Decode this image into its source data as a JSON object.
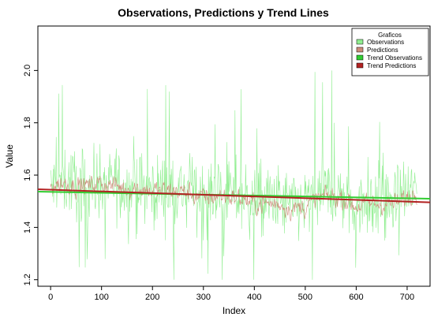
{
  "chart_data": {
    "type": "line",
    "title": "Observations, Predictions y Trend Lines",
    "xlabel": "Index",
    "ylabel": "Value",
    "xlim": [
      -25,
      745
    ],
    "ylim": [
      1.175,
      2.17
    ],
    "x_ticks": [
      0,
      100,
      200,
      300,
      400,
      500,
      600,
      700
    ],
    "y_ticks": [
      1.2,
      1.4,
      1.6,
      1.8,
      2.0
    ],
    "y_tick_labels": [
      "1.2",
      "1.4",
      "1.6",
      "1.8",
      "2.0"
    ],
    "x_tick_labels": [
      "0",
      "100",
      "200",
      "300",
      "400",
      "500",
      "600",
      "700"
    ],
    "n_points": 720,
    "grid": false,
    "legend": {
      "title": "Graficos",
      "position": "top-right",
      "entries": [
        "Observations",
        "Predictions",
        "Trend Observations",
        "Trend Predictions"
      ]
    },
    "series": [
      {
        "name": "Observations",
        "color": "#90ee90",
        "anchors": [
          [
            0,
            1.55
          ],
          [
            25,
            1.58
          ],
          [
            50,
            1.57
          ],
          [
            75,
            1.56
          ],
          [
            100,
            1.56
          ],
          [
            125,
            1.57
          ],
          [
            150,
            1.55
          ],
          [
            175,
            1.55
          ],
          [
            200,
            1.54
          ],
          [
            225,
            1.55
          ],
          [
            250,
            1.55
          ],
          [
            275,
            1.54
          ],
          [
            300,
            1.52
          ],
          [
            325,
            1.53
          ],
          [
            350,
            1.53
          ],
          [
            375,
            1.52
          ],
          [
            400,
            1.5
          ],
          [
            425,
            1.5
          ],
          [
            450,
            1.5
          ],
          [
            475,
            1.48
          ],
          [
            500,
            1.49
          ],
          [
            525,
            1.52
          ],
          [
            550,
            1.53
          ],
          [
            575,
            1.52
          ],
          [
            600,
            1.49
          ],
          [
            625,
            1.5
          ],
          [
            650,
            1.5
          ],
          [
            675,
            1.5
          ],
          [
            700,
            1.52
          ],
          [
            720,
            1.55
          ]
        ],
        "range": [
          1.2,
          2.0
        ]
      },
      {
        "name": "Predictions",
        "color": "#cd8c7a",
        "anchors": [
          [
            0,
            1.56
          ],
          [
            25,
            1.57
          ],
          [
            50,
            1.56
          ],
          [
            75,
            1.56
          ],
          [
            100,
            1.57
          ],
          [
            125,
            1.56
          ],
          [
            150,
            1.55
          ],
          [
            175,
            1.55
          ],
          [
            200,
            1.54
          ],
          [
            225,
            1.54
          ],
          [
            250,
            1.54
          ],
          [
            275,
            1.53
          ],
          [
            300,
            1.51
          ],
          [
            325,
            1.52
          ],
          [
            350,
            1.52
          ],
          [
            375,
            1.51
          ],
          [
            400,
            1.49
          ],
          [
            425,
            1.49
          ],
          [
            450,
            1.49
          ],
          [
            475,
            1.47
          ],
          [
            500,
            1.48
          ],
          [
            525,
            1.51
          ],
          [
            550,
            1.52
          ],
          [
            575,
            1.51
          ],
          [
            600,
            1.48
          ],
          [
            625,
            1.49
          ],
          [
            650,
            1.49
          ],
          [
            675,
            1.49
          ],
          [
            700,
            1.51
          ],
          [
            720,
            1.54
          ]
        ],
        "range": [
          1.38,
          1.66
        ]
      },
      {
        "name": "Trend Observations",
        "color": "#32cd32",
        "type": "line",
        "x": [
          -25,
          745
        ],
        "y": [
          1.5367,
          1.5098
        ]
      },
      {
        "name": "Trend Predictions",
        "color": "#b22222",
        "type": "line",
        "x": [
          -25,
          745
        ],
        "y": [
          1.5457,
          1.4959
        ]
      }
    ]
  }
}
